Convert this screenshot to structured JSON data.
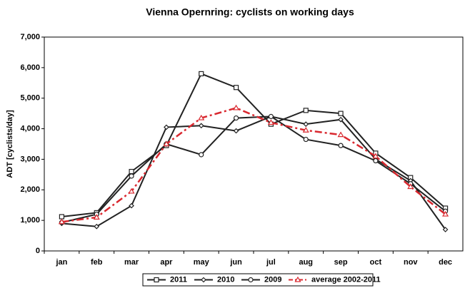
{
  "chart_data": {
    "type": "line",
    "title": "Vienna Opernring: cyclists on working days",
    "y_label": "ADT [cyclists/day]",
    "categories": [
      "jan",
      "feb",
      "mar",
      "apr",
      "may",
      "jun",
      "jul",
      "aug",
      "sep",
      "oct",
      "nov",
      "dec"
    ],
    "ylim": [
      0,
      7000
    ],
    "yticks": [
      0,
      {
        "value": 1000,
        "label": "1,000"
      },
      {
        "value": 2000,
        "label": "2,000"
      },
      {
        "value": 3000,
        "label": "3,000"
      },
      {
        "value": 4000,
        "label": "4,000"
      },
      {
        "value": 5000,
        "label": "5,000"
      },
      {
        "value": 6000,
        "label": "6,000"
      },
      {
        "value": 7000,
        "label": "7,000"
      }
    ],
    "legend": "bottom",
    "series": [
      {
        "name": "2011",
        "color": "#222222",
        "marker": "square",
        "dash": false,
        "values": [
          1120,
          1250,
          2600,
          3450,
          5800,
          5350,
          4150,
          4600,
          4500,
          3200,
          2400,
          1400
        ]
      },
      {
        "name": "2010",
        "color": "#222222",
        "marker": "diamond",
        "dash": false,
        "values": [
          900,
          800,
          1480,
          4050,
          4100,
          3930,
          4400,
          4150,
          4300,
          3000,
          2300,
          700
        ]
      },
      {
        "name": "2009",
        "color": "#222222",
        "marker": "circle",
        "dash": false,
        "values": [
          930,
          1200,
          2450,
          3500,
          3150,
          4350,
          4400,
          3650,
          3450,
          2950,
          2200,
          1300
        ]
      },
      {
        "name": "average 2002-2011",
        "color": "#d9282f",
        "marker": "triangle",
        "dash": true,
        "values": [
          950,
          1100,
          1950,
          3500,
          4350,
          4680,
          4200,
          3950,
          3800,
          3100,
          2100,
          1200
        ]
      }
    ]
  }
}
